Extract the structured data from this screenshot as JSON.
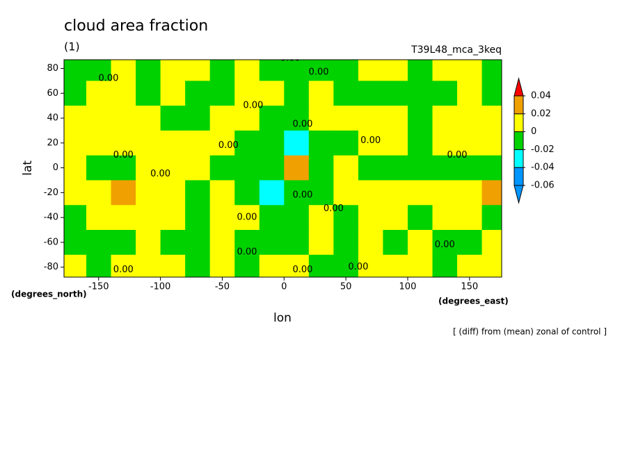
{
  "chart_data": {
    "type": "contourf",
    "title": "cloud area fraction",
    "subtitle": "(1)",
    "run_label": "T39L48_mca_3keq",
    "xlabel": "lon",
    "ylabel": "lat",
    "x_units": "(degrees_east)",
    "y_units": "(degrees_north)",
    "note": "[ (diff) from (mean) zonal of control ]",
    "contour_label": "0.00",
    "xlim": [
      -178,
      176
    ],
    "ylim": [
      -88,
      87
    ],
    "xticks": [
      -150,
      -100,
      -50,
      0,
      50,
      100,
      150
    ],
    "yticks": [
      -80,
      -60,
      -40,
      -20,
      0,
      20,
      40,
      60,
      80
    ],
    "x": [
      -170,
      -150,
      -130,
      -110,
      -90,
      -70,
      -50,
      -30,
      -10,
      10,
      30,
      50,
      70,
      90,
      110,
      130,
      150,
      170
    ],
    "y": [
      80,
      60,
      40,
      20,
      0,
      -20,
      -40,
      -60,
      -80
    ],
    "z": [
      [
        -0.005,
        -0.005,
        0.005,
        -0.005,
        0.005,
        0.005,
        -0.005,
        0.005,
        -0.01,
        -0.01,
        -0.005,
        -0.005,
        0.005,
        0.005,
        -0.005,
        0.005,
        0.005,
        -0.005
      ],
      [
        -0.005,
        0.005,
        0.005,
        -0.005,
        0.005,
        -0.005,
        -0.005,
        0.005,
        0.005,
        -0.005,
        0.005,
        -0.005,
        -0.005,
        -0.005,
        -0.005,
        -0.005,
        0.005,
        -0.005
      ],
      [
        0.005,
        0.005,
        0.005,
        0.005,
        -0.005,
        -0.005,
        0.005,
        0.005,
        -0.005,
        -0.005,
        0.005,
        0.005,
        0.005,
        0.005,
        -0.005,
        0.005,
        0.005,
        0.005
      ],
      [
        0.01,
        0.005,
        0.005,
        0.005,
        0.005,
        0.005,
        0.005,
        -0.005,
        -0.01,
        -0.025,
        -0.005,
        -0.005,
        0.005,
        0.005,
        -0.005,
        0.005,
        0.005,
        0.005
      ],
      [
        0.005,
        -0.005,
        -0.005,
        0.005,
        0.005,
        0.005,
        -0.005,
        -0.005,
        -0.005,
        0.025,
        -0.005,
        0.005,
        -0.005,
        -0.005,
        -0.005,
        -0.005,
        -0.005,
        -0.005
      ],
      [
        0.005,
        0.005,
        0.025,
        0.005,
        0.005,
        -0.005,
        0.005,
        -0.005,
        -0.025,
        -0.005,
        -0.005,
        0.005,
        0.005,
        0.005,
        0.005,
        0.005,
        0.005,
        0.025
      ],
      [
        -0.005,
        0.005,
        0.005,
        0.005,
        0.005,
        -0.005,
        0.005,
        0.005,
        -0.01,
        -0.01,
        0.005,
        -0.005,
        0.005,
        0.005,
        -0.005,
        0.005,
        0.005,
        -0.005
      ],
      [
        -0.005,
        -0.005,
        -0.005,
        0.005,
        -0.005,
        -0.005,
        0.005,
        -0.005,
        -0.005,
        -0.005,
        0.005,
        -0.005,
        0.005,
        -0.005,
        0.005,
        -0.005,
        -0.005,
        0.005
      ],
      [
        0.005,
        -0.005,
        0.005,
        0.005,
        0.005,
        -0.005,
        0.005,
        -0.005,
        0.005,
        0.005,
        -0.005,
        -0.005,
        0.005,
        0.005,
        0.005,
        -0.005,
        0.005,
        0.005
      ]
    ],
    "levels": [
      -0.06,
      -0.04,
      -0.02,
      0,
      0.02,
      0.04
    ],
    "level_colors": [
      "#0096ff",
      "#0096ff",
      "#00ffff",
      "#00d200",
      "#ffff00",
      "#f0a000",
      "#ff0000"
    ]
  }
}
